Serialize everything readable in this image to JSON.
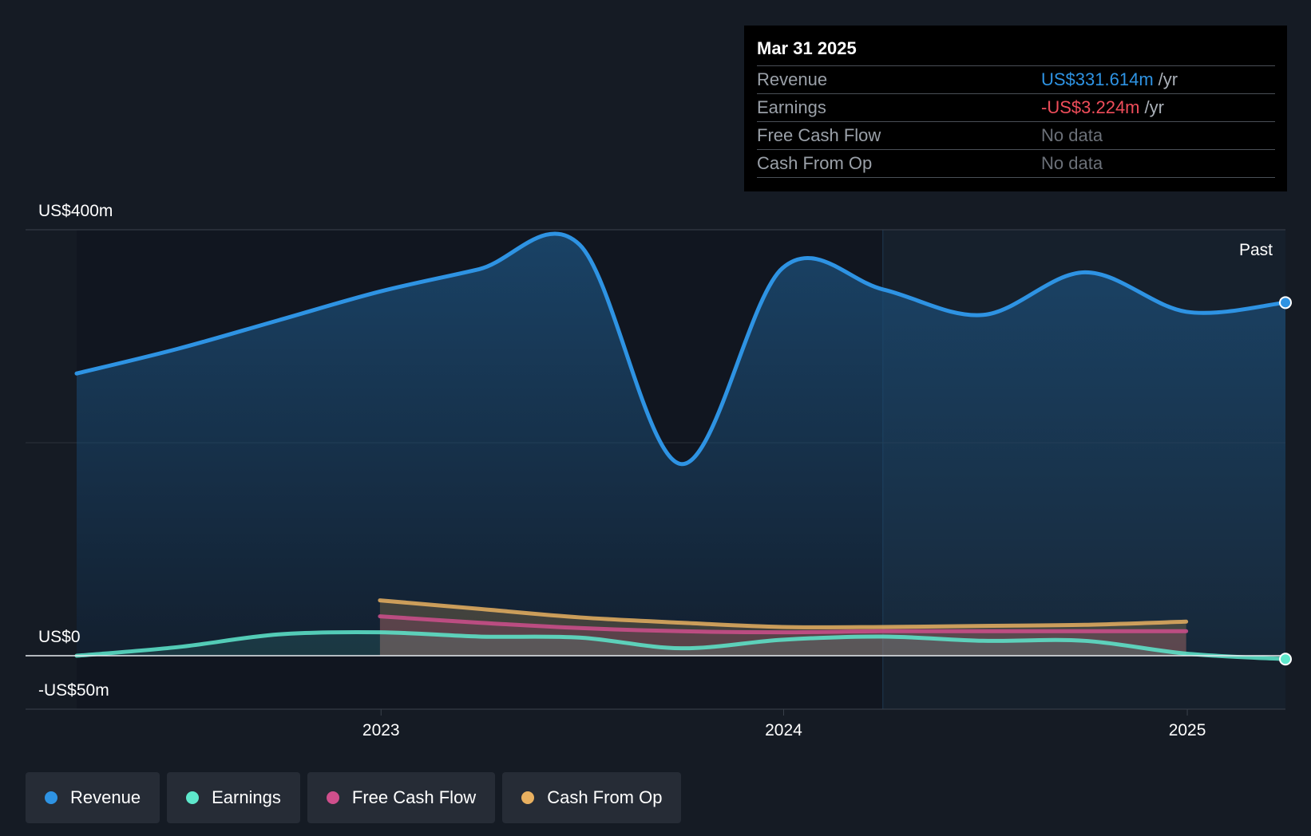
{
  "tooltip": {
    "date": "Mar 31 2025",
    "rows": [
      {
        "label": "Revenue",
        "value": "US$331.614m",
        "unit": "/yr",
        "color": "#2e93e3"
      },
      {
        "label": "Earnings",
        "value": "-US$3.224m",
        "unit": "/yr",
        "color": "#ef4d5a"
      },
      {
        "label": "Free Cash Flow",
        "value": "No data",
        "unit": ""
      },
      {
        "label": "Cash From Op",
        "value": "No data",
        "unit": ""
      }
    ]
  },
  "legend": [
    {
      "label": "Revenue",
      "color": "#2e93e3"
    },
    {
      "label": "Earnings",
      "color": "#5ee8cc"
    },
    {
      "label": "Free Cash Flow",
      "color": "#cf4f8c"
    },
    {
      "label": "Cash From Op",
      "color": "#e8b060"
    }
  ],
  "chart_data": {
    "type": "line",
    "y_labels": {
      "top": "US$400m",
      "zero": "US$0",
      "bottom": "-US$50m"
    },
    "ylim": [
      -50,
      400
    ],
    "xlim": [
      "2022-03-31",
      "2025-03-31"
    ],
    "x_ticks": [
      "2023",
      "2024",
      "2025"
    ],
    "past_label": "Past",
    "past_start": "2024-03-31",
    "grid": true,
    "series": [
      {
        "name": "Revenue",
        "color": "#2e93e3",
        "x": [
          "2022-03-31",
          "2022-06-30",
          "2022-09-30",
          "2022-12-31",
          "2023-03-31",
          "2023-06-30",
          "2023-09-30",
          "2023-12-31",
          "2024-03-31",
          "2024-06-30",
          "2024-09-30",
          "2024-12-31",
          "2025-03-31"
        ],
        "values": [
          265,
          288,
          315,
          342,
          363,
          386,
          180,
          364,
          344,
          320,
          360,
          323,
          331.6
        ]
      },
      {
        "name": "Earnings",
        "color": "#5ee8cc",
        "x": [
          "2022-03-31",
          "2022-06-30",
          "2022-09-30",
          "2022-12-31",
          "2023-03-31",
          "2023-06-30",
          "2023-09-30",
          "2023-12-31",
          "2024-03-31",
          "2024-06-30",
          "2024-09-30",
          "2024-12-31",
          "2025-03-31"
        ],
        "values": [
          0,
          8,
          20,
          22,
          18,
          17,
          7,
          15,
          18,
          14,
          14,
          2,
          -3.2
        ]
      },
      {
        "name": "Free Cash Flow",
        "color": "#cf4f8c",
        "x": [
          "2022-12-31",
          "2023-03-31",
          "2023-06-30",
          "2023-09-30",
          "2023-12-31",
          "2024-03-31",
          "2024-06-30",
          "2024-09-30",
          "2024-12-31"
        ],
        "values": [
          37,
          31,
          26,
          23,
          22,
          23,
          23,
          23,
          23
        ]
      },
      {
        "name": "Cash From Op",
        "color": "#e8b060",
        "x": [
          "2022-12-31",
          "2023-03-31",
          "2023-06-30",
          "2023-09-30",
          "2023-12-31",
          "2024-03-31",
          "2024-06-30",
          "2024-09-30",
          "2024-12-31"
        ],
        "values": [
          52,
          44,
          36,
          31,
          27,
          27,
          28,
          29,
          32
        ]
      }
    ]
  }
}
